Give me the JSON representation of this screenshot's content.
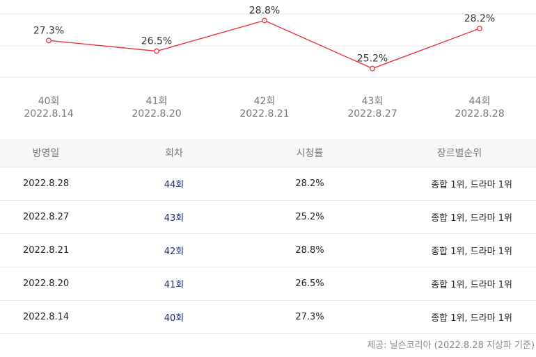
{
  "chart_data": {
    "type": "line",
    "categories": [
      "40회",
      "41회",
      "42회",
      "43회",
      "44회"
    ],
    "dates": [
      "2022.8.14",
      "2022.8.20",
      "2022.8.21",
      "2022.8.27",
      "2022.8.28"
    ],
    "series": [
      {
        "values": [
          27.3,
          26.5,
          28.8,
          25.2,
          28.2
        ]
      }
    ],
    "data_labels": [
      "27.3%",
      "26.5%",
      "28.8%",
      "25.2%",
      "28.2%"
    ],
    "ylim": [
      24.5,
      29.4
    ],
    "grid": true,
    "colors": {
      "line": "#e8353b",
      "grid": "#e9e9e9"
    }
  },
  "table": {
    "headers": [
      "방영일",
      "회차",
      "시청률",
      "장르별순위"
    ],
    "rows": [
      {
        "date": "2022.8.28",
        "episode": "44회",
        "rating": "28.2%",
        "rank": "종합 1위, 드라마 1위"
      },
      {
        "date": "2022.8.27",
        "episode": "43회",
        "rating": "25.2%",
        "rank": "종합 1위, 드라마 1위"
      },
      {
        "date": "2022.8.21",
        "episode": "42회",
        "rating": "28.8%",
        "rank": "종합 1위, 드라마 1위"
      },
      {
        "date": "2022.8.20",
        "episode": "41회",
        "rating": "26.5%",
        "rank": "종합 1위, 드라마 1위"
      },
      {
        "date": "2022.8.14",
        "episode": "40회",
        "rating": "27.3%",
        "rank": "종합 1위, 드라마 1위"
      }
    ]
  },
  "footer": "제공: 닐슨코리아 (2022.8.28 지상파 기준)"
}
